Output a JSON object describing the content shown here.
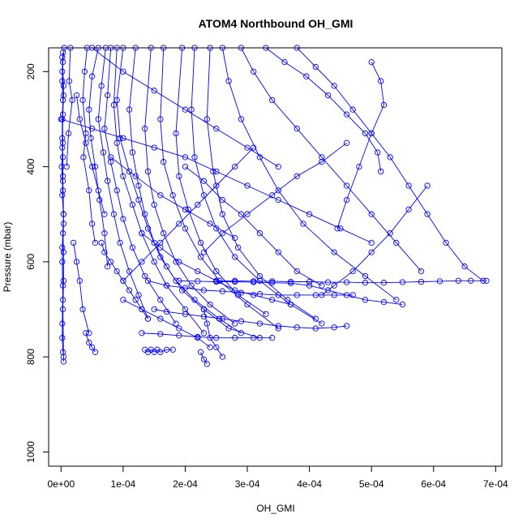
{
  "chart_data": {
    "type": "line",
    "title": "ATOM4 Northbound OH_GMI",
    "xlabel": "OH_GMI",
    "ylabel": "Pressure (mbar)",
    "xlim": [
      -2e-05,
      0.00071
    ],
    "ylim": [
      1030,
      150
    ],
    "y_reversed": true,
    "grid": false,
    "x_ticks": [
      0,
      0.0001,
      0.0002,
      0.0003,
      0.0004,
      0.0005,
      0.0006,
      0.0007
    ],
    "x_tick_labels": [
      "0e+00",
      "1e-04",
      "2e-04",
      "3e-04",
      "4e-04",
      "5e-04",
      "6e-04",
      "7e-04"
    ],
    "y_ticks": [
      200,
      400,
      600,
      800,
      1000
    ],
    "y_tick_labels": [
      "200",
      "400",
      "600",
      "800",
      "1000"
    ],
    "series_color": "#0000ff",
    "marker": "open-circle",
    "series": [
      {
        "x": [
          5e-06,
          3e-06,
          2e-06,
          3e-06,
          2e-06,
          2e-06,
          3e-06,
          3e-06,
          2e-06,
          4e-06,
          3e-06,
          4e-06,
          4e-06,
          3e-06,
          4e-06
        ],
        "y": [
          150,
          180,
          220,
          260,
          300,
          340,
          380,
          420,
          460,
          500,
          540,
          580,
          640,
          700,
          810
        ]
      },
      {
        "x": [
          3e-06,
          2e-06,
          4e-06,
          2e-06,
          3e-06,
          1e-06,
          3e-06,
          4e-06,
          2e-06,
          3e-06,
          2e-06,
          4e-06
        ],
        "y": [
          160,
          200,
          250,
          300,
          350,
          400,
          450,
          520,
          600,
          680,
          760,
          800
        ]
      },
      {
        "x": [
          2e-06,
          4e-06,
          3e-06,
          2e-06,
          3e-06,
          4e-06,
          2e-06,
          3e-06,
          2e-06,
          3e-06
        ],
        "y": [
          170,
          230,
          290,
          360,
          430,
          500,
          570,
          650,
          730,
          790
        ]
      },
      {
        "x": [
          1.5e-05,
          1.3e-05,
          1.8e-05,
          1.2e-05,
          9e-06
        ],
        "y": [
          150,
          220,
          260,
          330,
          400
        ]
      },
      {
        "x": [
          4.2e-05,
          3.8e-05,
          3.5e-05,
          4e-05,
          3.6e-05,
          4.5e-05,
          5e-05,
          5.5e-05
        ],
        "y": [
          150,
          200,
          260,
          330,
          380,
          450,
          520,
          560
        ]
      },
      {
        "x": [
          6e-05,
          5e-05,
          4.5e-05,
          4.8e-05,
          5.5e-05,
          6.2e-05,
          7e-05,
          7.5e-05
        ],
        "y": [
          150,
          210,
          280,
          340,
          400,
          470,
          540,
          610
        ]
      },
      {
        "x": [
          7.2e-05,
          6.5e-05,
          6e-05,
          6.8e-05,
          7.5e-05,
          8.5e-05,
          9.5e-05,
          0.00011,
          0.000125,
          0.00014
        ],
        "y": [
          150,
          230,
          300,
          370,
          430,
          500,
          560,
          620,
          670,
          720
        ]
      },
      {
        "x": [
          8e-05,
          7.5e-05,
          7e-05,
          8e-05,
          9e-05,
          0.0001,
          0.000115,
          0.000135,
          0.00016,
          0.000185
        ],
        "y": [
          150,
          250,
          320,
          390,
          450,
          510,
          570,
          630,
          680,
          730
        ]
      },
      {
        "x": [
          9e-05,
          8.5e-05,
          9e-05,
          0.0001,
          0.000115,
          0.00013,
          0.00015,
          0.00017,
          0.0002,
          0.00023
        ],
        "y": [
          150,
          270,
          350,
          420,
          480,
          540,
          600,
          650,
          700,
          750
        ]
      },
      {
        "x": [
          0.0001,
          9e-05,
          9.5e-05,
          0.00011,
          0.000125,
          0.00014,
          0.00016,
          0.000185,
          0.000215,
          0.000255,
          0.00029
        ],
        "y": [
          150,
          260,
          340,
          410,
          470,
          530,
          590,
          640,
          680,
          720,
          750
        ]
      },
      {
        "x": [
          0.00012,
          0.00011,
          0.000115,
          0.000125,
          0.000135,
          0.00015,
          0.00017,
          0.000195,
          0.00023,
          0.00027,
          0.00032
        ],
        "y": [
          150,
          280,
          370,
          440,
          500,
          560,
          610,
          660,
          700,
          740,
          760
        ]
      },
      {
        "x": [
          0.000145,
          0.000135,
          0.00014,
          0.00015,
          0.000165,
          0.000185,
          0.00021,
          0.00024,
          0.00028
        ],
        "y": [
          150,
          320,
          410,
          480,
          540,
          600,
          650,
          690,
          730
        ]
      },
      {
        "x": [
          0.000165,
          0.00016,
          0.000165,
          0.00018,
          0.0002,
          0.000225,
          0.000255,
          0.0003,
          0.00035
        ],
        "y": [
          150,
          300,
          390,
          460,
          530,
          590,
          640,
          690,
          740
        ]
      },
      {
        "x": [
          0.000195,
          0.000185,
          0.00019,
          0.000205,
          0.000225,
          0.00025,
          0.000285,
          0.00033
        ],
        "y": [
          150,
          330,
          420,
          490,
          560,
          620,
          670,
          710
        ]
      },
      {
        "x": [
          0.000215,
          0.00021,
          0.000215,
          0.00023,
          0.00025,
          0.00028,
          0.00032,
          0.00037,
          0.00042
        ],
        "y": [
          150,
          280,
          380,
          460,
          530,
          590,
          640,
          690,
          730
        ]
      },
      {
        "x": [
          0.00024,
          0.000235,
          0.000245,
          0.00026,
          0.000285,
          0.00032,
          0.000365,
          0.00041
        ],
        "y": [
          150,
          300,
          410,
          500,
          570,
          630,
          680,
          720
        ]
      },
      {
        "x": [
          0.00026,
          0.00027,
          0.00029,
          0.00032,
          0.00035,
          0.00039,
          0.00044,
          0.00049,
          0.00054
        ],
        "y": [
          150,
          220,
          300,
          380,
          450,
          520,
          580,
          630,
          680
        ]
      },
      {
        "x": [
          0.00029,
          0.00031,
          0.00034,
          0.00038,
          0.00042,
          0.00046,
          0.0005,
          0.00054,
          0.00058
        ],
        "y": [
          150,
          200,
          260,
          320,
          380,
          440,
          500,
          560,
          620
        ]
      },
      {
        "x": [
          0.00033,
          0.00036,
          0.000395,
          0.00043,
          0.00046,
          0.00049,
          0.00051,
          0.000515
        ],
        "y": [
          150,
          180,
          210,
          250,
          290,
          330,
          370,
          410
        ]
      },
      {
        "x": [
          0.00038,
          0.00041,
          0.00044,
          0.00047,
          0.0005,
          0.00053,
          0.00056,
          0.00059,
          0.00062,
          0.00065,
          0.00068
        ],
        "y": [
          150,
          190,
          230,
          280,
          330,
          380,
          440,
          500,
          560,
          610,
          640
        ]
      },
      {
        "x": [
          0.0005,
          0.000515,
          0.00052,
          0.0005,
          0.00048,
          0.00046,
          0.000445
        ],
        "y": [
          180,
          220,
          270,
          330,
          400,
          470,
          530
        ]
      },
      {
        "x": [
          0.00031,
          0.00028,
          0.00025,
          0.00022,
          0.00019,
          0.00016,
          0.00013,
          0.0001
        ],
        "y": [
          360,
          400,
          440,
          480,
          520,
          560,
          600,
          640
        ]
      },
      {
        "x": [
          0.00046,
          0.00042,
          0.00038,
          0.00034,
          0.0003,
          0.00026,
          0.00023
        ],
        "y": [
          350,
          390,
          420,
          460,
          500,
          540,
          580
        ]
      },
      {
        "x": [
          0.00059,
          0.00056,
          0.00053,
          0.0005,
          0.00047,
          0.00044,
          0.00042
        ],
        "y": [
          440,
          490,
          540,
          580,
          620,
          650,
          670
        ]
      },
      {
        "x": [
          0.0,
          5e-05,
          0.0001,
          0.00015,
          0.0002,
          0.00025,
          0.0003,
          0.00035,
          0.0004,
          0.00045,
          0.0005
        ],
        "y": [
          300,
          320,
          340,
          360,
          380,
          410,
          440,
          470,
          500,
          530,
          560
        ]
      },
      {
        "x": [
          5e-05,
          0.0001,
          0.00015,
          0.0002,
          0.00025,
          0.0003,
          0.00035
        ],
        "y": [
          150,
          200,
          240,
          280,
          320,
          360,
          400
        ]
      },
      {
        "x": [
          8e-05,
          0.00012,
          0.00016,
          0.0002,
          0.00024,
          0.00028
        ],
        "y": [
          380,
          420,
          460,
          490,
          520,
          550
        ]
      },
      {
        "x": [
          0.0002,
          0.00023,
          0.00026,
          0.00029,
          0.00032,
          0.00035,
          0.00038,
          0.00042
        ],
        "y": [
          400,
          430,
          470,
          500,
          540,
          580,
          620,
          650
        ]
      },
      {
        "x": [
          0.00013,
          0.00016,
          0.00019,
          0.00022,
          0.00025,
          0.00028,
          0.00031,
          0.00034,
          0.00037
        ],
        "y": [
          540,
          570,
          600,
          620,
          640,
          660,
          670,
          680,
          690
        ]
      },
      {
        "x": [
          0.00014,
          0.00017,
          0.0002,
          0.00023,
          0.00026,
          0.00029,
          0.00032,
          0.00035,
          0.00038,
          0.00041,
          0.00044,
          0.00047
        ],
        "y": [
          640,
          650,
          655,
          660,
          662,
          665,
          668,
          670,
          670,
          670,
          670,
          670
        ]
      },
      {
        "x": [
          0.00019,
          0.00022,
          0.00025,
          0.00028,
          0.00031,
          0.00034,
          0.00037,
          0.0004,
          0.00043,
          0.00046,
          0.00049,
          0.00052,
          0.00055
        ],
        "y": [
          640,
          641,
          642,
          642,
          643,
          644,
          645,
          650,
          660,
          670,
          680,
          685,
          690
        ]
      },
      {
        "x": [
          0.00025,
          0.00028,
          0.00031,
          0.00034,
          0.00037,
          0.0004,
          0.00043,
          0.00046,
          0.00049,
          0.00052,
          0.00055,
          0.00058,
          0.00061,
          0.00064,
          0.00066,
          0.000685
        ],
        "y": [
          640,
          640,
          641,
          641,
          642,
          642,
          643,
          643,
          644,
          644,
          643,
          642,
          641,
          640,
          640,
          640
        ]
      },
      {
        "x": [
          0.00015,
          0.00017,
          0.0002,
          0.00023,
          0.00026,
          0.00029,
          0.00032,
          0.00035,
          0.00038,
          0.00041,
          0.00044,
          0.00046
        ],
        "y": [
          700,
          705,
          710,
          715,
          720,
          725,
          730,
          735,
          738,
          740,
          738,
          735
        ]
      },
      {
        "x": [
          0.00013,
          0.00016,
          0.00019,
          0.00022,
          0.00025,
          0.00028,
          0.00031,
          0.00034
        ],
        "y": [
          750,
          752,
          755,
          758,
          760,
          760,
          760,
          760
        ]
      },
      {
        "x": [
          0.0001,
          0.00013,
          0.00016,
          0.00019,
          0.00022,
          0.00024
        ],
        "y": [
          680,
          700,
          720,
          740,
          760,
          780
        ]
      },
      {
        "x": [
          0.000135,
          0.00014,
          0.000145,
          0.00015,
          0.000155,
          0.00016,
          0.00017,
          0.00018
        ],
        "y": [
          785,
          790,
          785,
          790,
          785,
          790,
          785,
          785
        ]
      },
      {
        "x": [
          4e-05,
          4.5e-05,
          5e-05,
          5.5e-05
        ],
        "y": [
          750,
          770,
          780,
          790
        ]
      },
      {
        "x": [
          0.000225,
          0.00023,
          0.000235
        ],
        "y": [
          790,
          805,
          815
        ]
      },
      {
        "x": [
          0.00023,
          0.000235,
          0.00024,
          0.00025,
          0.00026
        ],
        "y": [
          700,
          730,
          760,
          780,
          800
        ]
      },
      {
        "x": [
          6.5e-05,
          7e-05,
          8e-05,
          9e-05,
          0.0001,
          0.00011,
          0.00012,
          0.00013,
          0.00014
        ],
        "y": [
          560,
          580,
          600,
          620,
          640,
          660,
          680,
          700,
          720
        ]
      },
      {
        "x": [
          2.5e-05,
          3e-05,
          4e-05,
          5e-05,
          6e-05,
          7e-05
        ],
        "y": [
          250,
          300,
          350,
          400,
          450,
          500
        ]
      },
      {
        "x": [
          2e-05,
          2.5e-05,
          3e-05,
          3.5e-05,
          4.5e-05
        ],
        "y": [
          560,
          600,
          640,
          700,
          750
        ]
      }
    ]
  }
}
